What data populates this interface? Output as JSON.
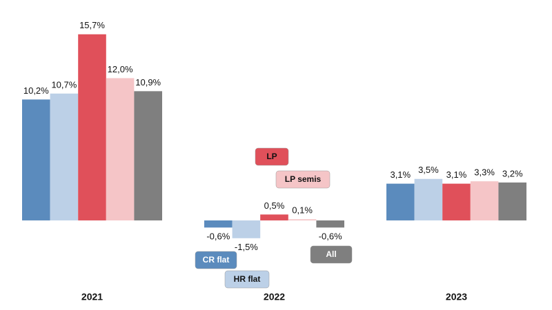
{
  "chart_data": {
    "type": "bar",
    "categories": [
      "2021",
      "2022",
      "2023"
    ],
    "series": [
      {
        "name": "CR flat",
        "color": "#5b8bbd",
        "values": [
          10.2,
          -0.6,
          3.1
        ],
        "value_labels": [
          "10,2%",
          "-0,6%",
          "3,1%"
        ]
      },
      {
        "name": "HR flat",
        "color": "#bcd0e7",
        "values": [
          10.7,
          -1.5,
          3.5
        ],
        "value_labels": [
          "10,7%",
          "-1,5%",
          "3,5%"
        ]
      },
      {
        "name": "LP",
        "color": "#e0505a",
        "values": [
          15.7,
          0.5,
          3.1
        ],
        "value_labels": [
          "15,7%",
          "0,5%",
          "3,1%"
        ]
      },
      {
        "name": "LP semis",
        "color": "#f5c5c7",
        "values": [
          12.0,
          0.1,
          3.3
        ],
        "value_labels": [
          "12,0%",
          "0,1%",
          "3,3%"
        ]
      },
      {
        "name": "All",
        "color": "#7f7f7f",
        "values": [
          10.9,
          -0.6,
          3.2
        ],
        "value_labels": [
          "10,9%",
          "-0,6%",
          "3,2%"
        ]
      }
    ],
    "ylim": [
      -3,
      16
    ]
  }
}
